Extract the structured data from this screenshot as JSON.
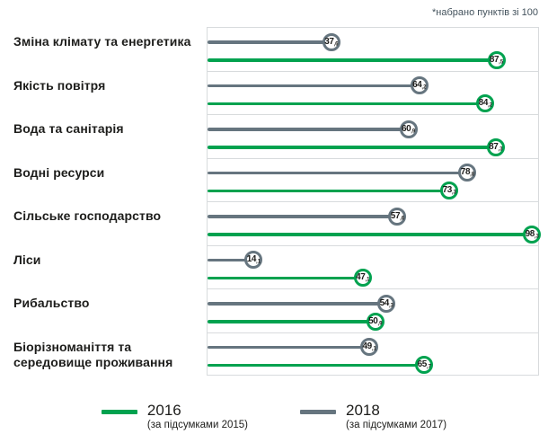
{
  "note": "*набрано пунктів зі 100",
  "colors": {
    "green_2016": "#00a24f",
    "gray_2018": "#66757f",
    "grid_border": "#d8dbdd",
    "text": "#1d1d1b"
  },
  "chart_data": {
    "type": "dumbbell",
    "title": "",
    "xlabel": "",
    "ylabel": "",
    "xlim": [
      0,
      100
    ],
    "grid": "row-bands",
    "decimal_separator": ",",
    "unit_note": "*набрано пунктів зі 100",
    "categories": [
      "Зміна клімату та енергетика",
      "Якість повітря",
      "Вода та санітарія",
      "Водні ресурси",
      "Сільське господарство",
      "Ліси",
      "Рибальство",
      "Біорізноманіття та\nсередовище проживання"
    ],
    "series": [
      {
        "name": "2016",
        "subtitle": "(за підсумками 2015)",
        "color": "#00a24f",
        "values": [
          87.5,
          84.2,
          87.3,
          73.3,
          98.3,
          47.1,
          50.9,
          65.7
        ]
      },
      {
        "name": "2018",
        "subtitle": "(за підсумками 2017)",
        "color": "#66757f",
        "values": [
          37.6,
          64.2,
          60.9,
          78.8,
          57.6,
          14.1,
          54.3,
          49.1
        ]
      }
    ],
    "legend_position": "bottom-center"
  }
}
